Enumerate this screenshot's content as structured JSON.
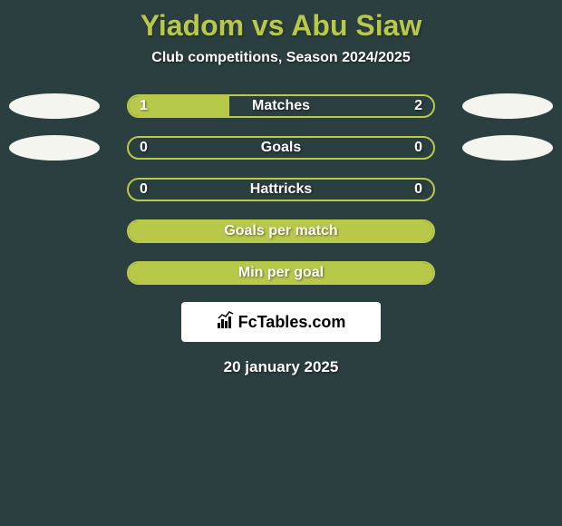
{
  "title": "Yiadom vs Abu Siaw",
  "subtitle": "Club competitions, Season 2024/2025",
  "date": "20 january 2025",
  "logo_text": "FcTables.com",
  "colors": {
    "background": "#2b3e40",
    "accent": "#b8c94a",
    "text_light": "#ffffff",
    "marker": "#f5f5f0",
    "logo_bg": "#ffffff",
    "logo_text": "#000000"
  },
  "stats": [
    {
      "label": "Matches",
      "left_value": "1",
      "right_value": "2",
      "left_fill_percent": 33,
      "right_fill_percent": 0,
      "show_left_marker": true,
      "show_right_marker": true,
      "show_values": true
    },
    {
      "label": "Goals",
      "left_value": "0",
      "right_value": "0",
      "left_fill_percent": 0,
      "right_fill_percent": 0,
      "show_left_marker": true,
      "show_right_marker": true,
      "show_values": true
    },
    {
      "label": "Hattricks",
      "left_value": "0",
      "right_value": "0",
      "left_fill_percent": 0,
      "right_fill_percent": 0,
      "show_left_marker": false,
      "show_right_marker": false,
      "show_values": true
    },
    {
      "label": "Goals per match",
      "left_value": "",
      "right_value": "",
      "left_fill_percent": 0,
      "right_fill_percent": 0,
      "show_left_marker": false,
      "show_right_marker": false,
      "show_values": false,
      "full_fill": true
    },
    {
      "label": "Min per goal",
      "left_value": "",
      "right_value": "",
      "left_fill_percent": 0,
      "right_fill_percent": 0,
      "show_left_marker": false,
      "show_right_marker": false,
      "show_values": false,
      "full_fill": true
    }
  ]
}
